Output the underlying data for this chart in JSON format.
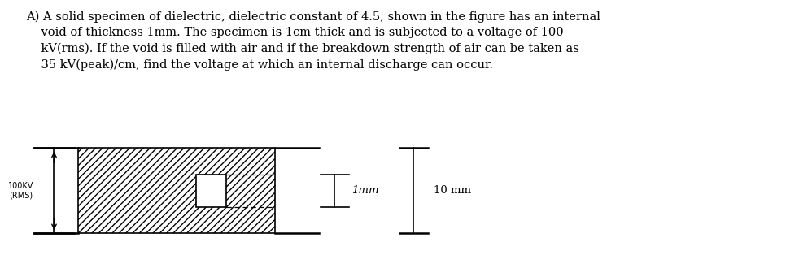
{
  "line1": "A) A solid specimen of dielectric, dielectric constant of 4.5, shown in the figure has an internal",
  "line2": "    void of thickness 1mm. The specimen is 1cm thick and is subjected to a voltage of 100",
  "line3": "    kV(rms). If the void is filled with air and if the breakdown strength of air can be taken as",
  "line4": "    35 kV(peak)/cm, find the voltage at which an internal discharge can occur.",
  "fig_bg": "#ffffff",
  "label_100kv": "100KV\n(RMS)",
  "label_1mm": "1mm",
  "label_10mm": "10 mm",
  "font_size_text": 10.5,
  "font_size_labels": 7.0
}
